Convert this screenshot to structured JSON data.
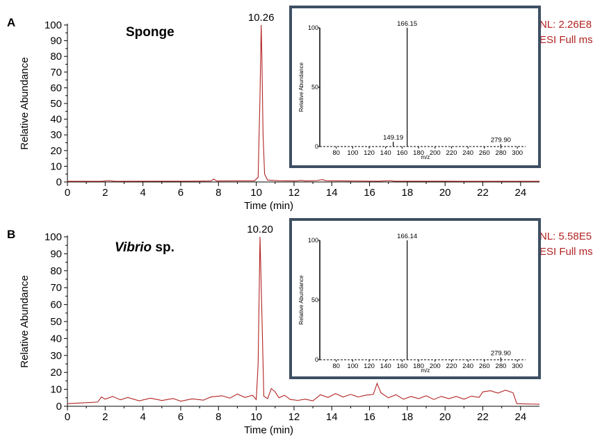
{
  "colors": {
    "trace": "#b22222",
    "nl_text": "#b22222",
    "inset_border": "#3e4f63",
    "axis": "#000000"
  },
  "chart_data": [
    {
      "type": "line",
      "panel_label": "A",
      "sample_name": "Sponge",
      "sample_name_italic": "",
      "sample_name_rest": "",
      "nl": "NL: 2.26E8",
      "scan": "ESI Full ms",
      "xlabel": "Time (min)",
      "ylabel": "Relative Abundance",
      "xlim": [
        0,
        25
      ],
      "ylim": [
        0,
        100
      ],
      "xticks": [
        0,
        2,
        4,
        6,
        8,
        10,
        12,
        14,
        16,
        18,
        20,
        22,
        24
      ],
      "yticks": [
        0,
        10,
        20,
        30,
        40,
        50,
        60,
        70,
        80,
        90,
        100
      ],
      "peak_label": "10.26",
      "peak_label_x": 10.26,
      "series": [
        {
          "points": [
            [
              0,
              0.4
            ],
            [
              1.8,
              0.4
            ],
            [
              2.2,
              0.9
            ],
            [
              2.5,
              0.4
            ],
            [
              4.5,
              0.5
            ],
            [
              6.5,
              0.5
            ],
            [
              7.6,
              0.6
            ],
            [
              7.75,
              1.8
            ],
            [
              7.9,
              0.6
            ],
            [
              9.0,
              0.7
            ],
            [
              9.9,
              0.7
            ],
            [
              10.1,
              3
            ],
            [
              10.2,
              55
            ],
            [
              10.26,
              100
            ],
            [
              10.3,
              80
            ],
            [
              10.36,
              30
            ],
            [
              10.44,
              5
            ],
            [
              10.6,
              1.2
            ],
            [
              11.2,
              0.8
            ],
            [
              12.1,
              0.6
            ],
            [
              12.4,
              1.0
            ],
            [
              12.6,
              0.6
            ],
            [
              13.2,
              0.9
            ],
            [
              13.5,
              1.5
            ],
            [
              13.7,
              0.8
            ],
            [
              15,
              0.6
            ],
            [
              16.5,
              0.5
            ],
            [
              17.1,
              0.9
            ],
            [
              17.3,
              0.5
            ],
            [
              19,
              0.5
            ],
            [
              21,
              0.4
            ],
            [
              24,
              0.4
            ],
            [
              25,
              0.4
            ]
          ]
        }
      ],
      "inset": {
        "xlabel": "m/z",
        "ylabel": "Relative Abundance",
        "xlim": [
          60,
          310
        ],
        "ylim": [
          0,
          100
        ],
        "xticks": [
          80,
          100,
          120,
          140,
          160,
          180,
          200,
          220,
          240,
          260,
          280,
          300
        ],
        "yticks": [
          0,
          50,
          100
        ],
        "peaks": [
          {
            "mz": 166.15,
            "intensity": 100,
            "label": "166.15"
          },
          {
            "mz": 149.19,
            "intensity": 4,
            "label": "149.19"
          },
          {
            "mz": 279.9,
            "intensity": 2,
            "label": "279.90"
          }
        ]
      }
    },
    {
      "type": "line",
      "panel_label": "B",
      "sample_name": "",
      "sample_name_italic": "Vibrio",
      "sample_name_rest": " sp.",
      "nl": "NL: 5.58E5",
      "scan": "ESI Full ms",
      "xlabel": "Time (min)",
      "ylabel": "Relative Abundance",
      "xlim": [
        0,
        25
      ],
      "ylim": [
        0,
        100
      ],
      "xticks": [
        0,
        2,
        4,
        6,
        8,
        10,
        12,
        14,
        16,
        18,
        20,
        22,
        24
      ],
      "yticks": [
        0,
        10,
        20,
        30,
        40,
        50,
        60,
        70,
        80,
        90,
        100
      ],
      "peak_label": "10.20",
      "peak_label_x": 10.2,
      "series": [
        {
          "points": [
            [
              0,
              1.5
            ],
            [
              1.6,
              2.5
            ],
            [
              1.8,
              5.5
            ],
            [
              2.0,
              4.2
            ],
            [
              2.4,
              5.8
            ],
            [
              2.8,
              3.8
            ],
            [
              3.2,
              5.2
            ],
            [
              3.8,
              3.2
            ],
            [
              4.4,
              4.8
            ],
            [
              5.0,
              3.4
            ],
            [
              5.6,
              4.6
            ],
            [
              6.0,
              3.0
            ],
            [
              6.6,
              4.4
            ],
            [
              7.2,
              3.6
            ],
            [
              7.6,
              5.5
            ],
            [
              8.2,
              6.2
            ],
            [
              8.6,
              4.8
            ],
            [
              9.0,
              7.2
            ],
            [
              9.4,
              5.2
            ],
            [
              9.8,
              6.5
            ],
            [
              10.0,
              4.0
            ],
            [
              10.1,
              25
            ],
            [
              10.2,
              100
            ],
            [
              10.3,
              55
            ],
            [
              10.4,
              6
            ],
            [
              10.6,
              4.5
            ],
            [
              10.8,
              10.5
            ],
            [
              11.0,
              8.5
            ],
            [
              11.2,
              5
            ],
            [
              11.5,
              6.5
            ],
            [
              11.8,
              4
            ],
            [
              12.2,
              3.5
            ],
            [
              12.6,
              4.2
            ],
            [
              13.0,
              3.2
            ],
            [
              13.4,
              6.8
            ],
            [
              13.8,
              5.2
            ],
            [
              14.2,
              7.5
            ],
            [
              14.6,
              5.5
            ],
            [
              15.0,
              7.0
            ],
            [
              15.4,
              5.5
            ],
            [
              15.8,
              6.5
            ],
            [
              16.2,
              7.0
            ],
            [
              16.4,
              13.5
            ],
            [
              16.6,
              8.0
            ],
            [
              17.0,
              5.0
            ],
            [
              17.4,
              6.8
            ],
            [
              17.8,
              4.2
            ],
            [
              18.2,
              5.8
            ],
            [
              18.6,
              4.5
            ],
            [
              19.0,
              6.2
            ],
            [
              19.4,
              4.0
            ],
            [
              19.8,
              5.8
            ],
            [
              20.2,
              4.5
            ],
            [
              20.6,
              5.8
            ],
            [
              21.0,
              4.2
            ],
            [
              21.4,
              6.0
            ],
            [
              21.8,
              5.2
            ],
            [
              22.0,
              8.5
            ],
            [
              22.4,
              9.2
            ],
            [
              22.8,
              7.8
            ],
            [
              23.2,
              9.5
            ],
            [
              23.6,
              8.0
            ],
            [
              23.8,
              1.5
            ],
            [
              25,
              1.2
            ]
          ]
        }
      ],
      "inset": {
        "xlabel": "m/z",
        "ylabel": "Relative Abundance",
        "xlim": [
          60,
          310
        ],
        "ylim": [
          0,
          100
        ],
        "xticks": [
          80,
          100,
          120,
          140,
          160,
          180,
          200,
          220,
          240,
          260,
          280,
          300
        ],
        "yticks": [
          0,
          50,
          100
        ],
        "peaks": [
          {
            "mz": 166.14,
            "intensity": 100,
            "label": "166.14"
          },
          {
            "mz": 279.9,
            "intensity": 2,
            "label": "279.90"
          }
        ]
      }
    }
  ]
}
